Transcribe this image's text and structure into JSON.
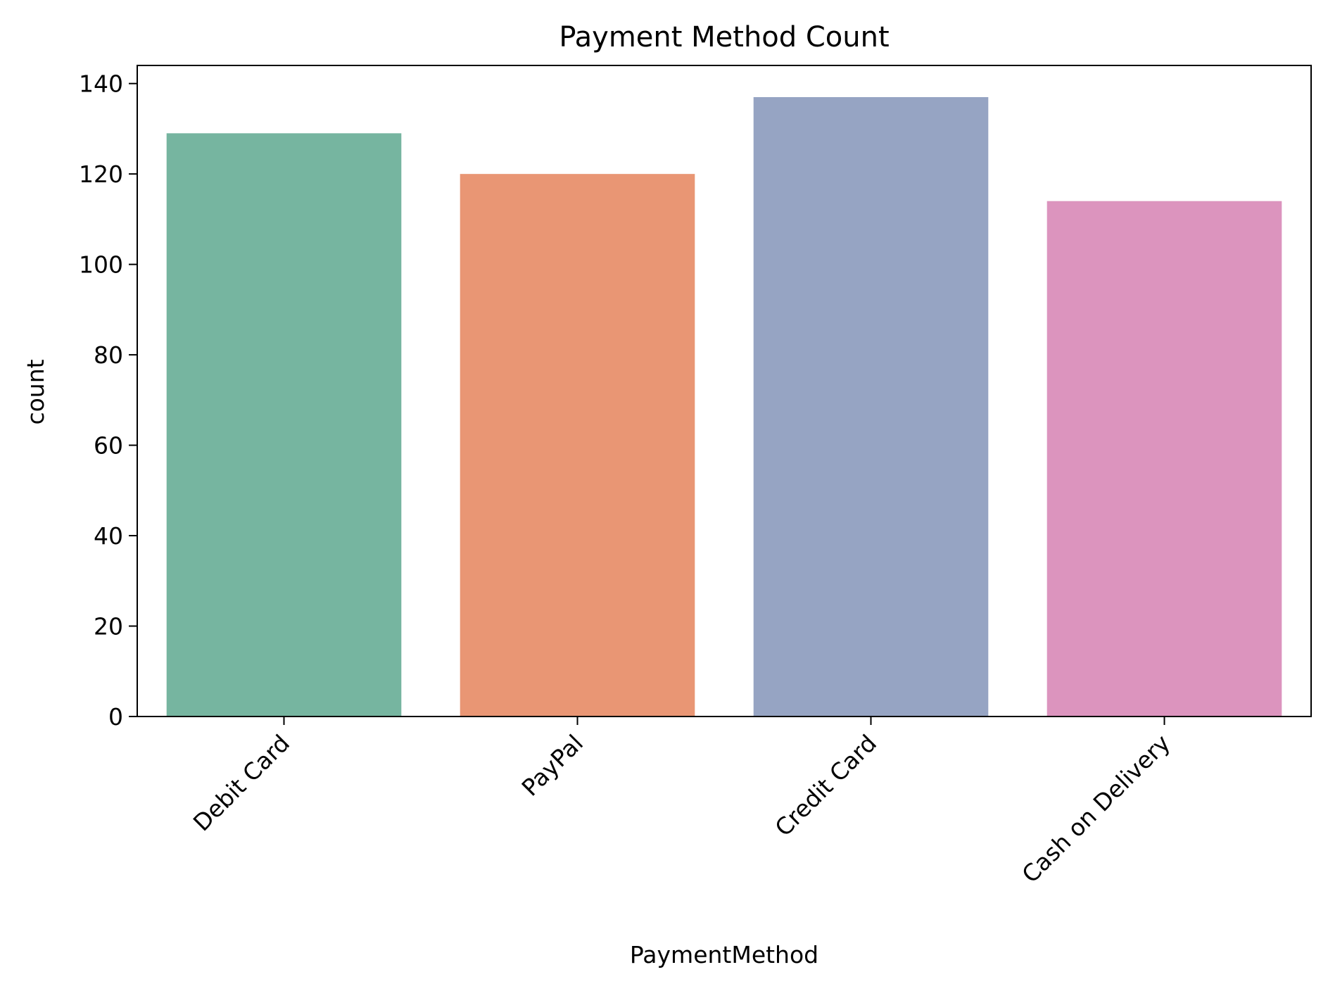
{
  "chart_data": {
    "type": "bar",
    "title": "Payment Method Count",
    "xlabel": "PaymentMethod",
    "ylabel": "count",
    "categories": [
      "Debit Card",
      "PayPal",
      "Credit Card",
      "Cash on Delivery"
    ],
    "values": [
      129,
      120,
      137,
      114
    ],
    "colors": [
      "#76b5a0",
      "#e99674",
      "#96a4c3",
      "#dc94be"
    ],
    "ylim": [
      0,
      144
    ],
    "yticks": [
      0,
      20,
      40,
      60,
      80,
      100,
      120,
      140
    ],
    "grid": false,
    "legend": "none"
  }
}
